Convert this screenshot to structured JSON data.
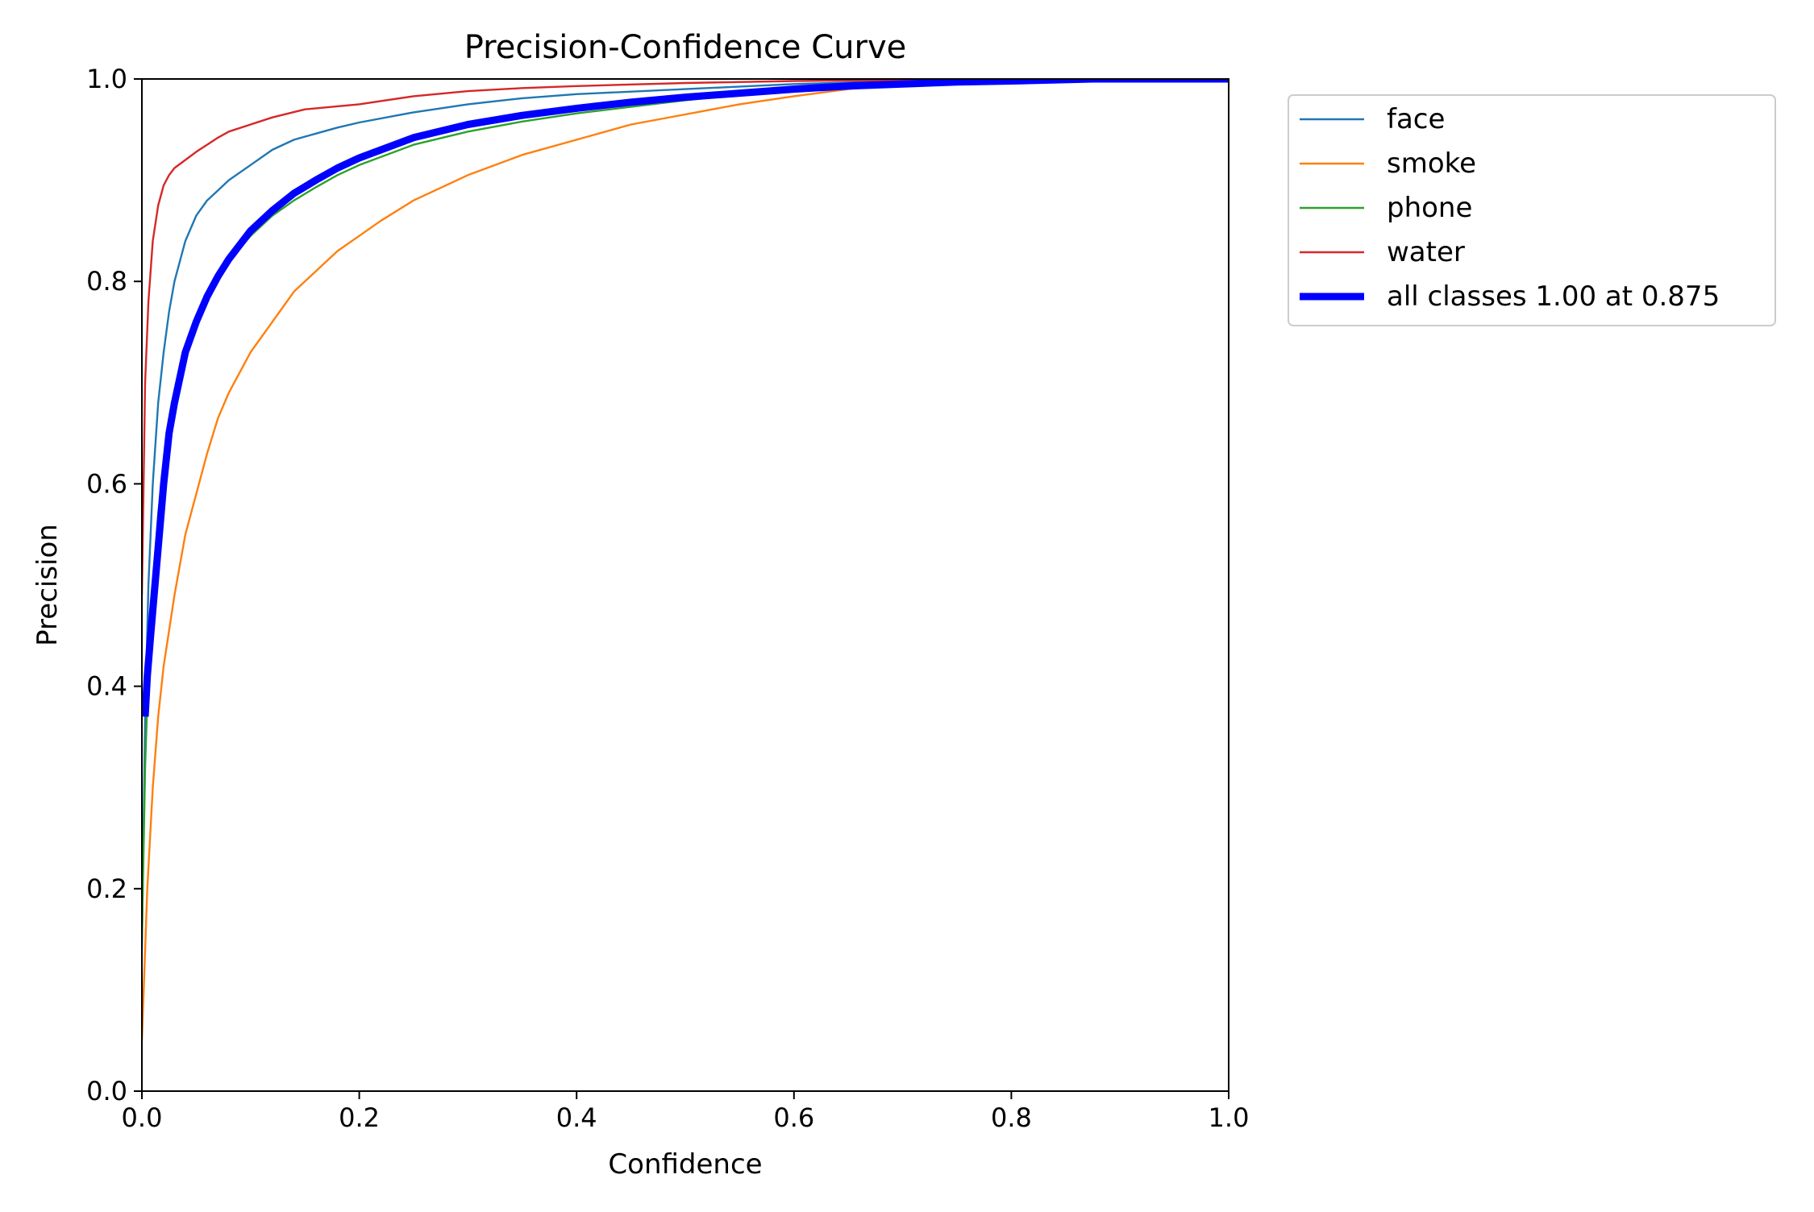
{
  "chart_data": {
    "type": "line",
    "title": "Precision-Confidence Curve",
    "xlabel": "Confidence",
    "ylabel": "Precision",
    "xlim": [
      0.0,
      1.0
    ],
    "ylim": [
      0.0,
      1.0
    ],
    "xticks": [
      0.0,
      0.2,
      0.4,
      0.6,
      0.8,
      1.0
    ],
    "yticks": [
      0.0,
      0.2,
      0.4,
      0.6,
      0.8,
      1.0
    ],
    "xtick_labels": [
      "0.0",
      "0.2",
      "0.4",
      "0.6",
      "0.8",
      "1.0"
    ],
    "ytick_labels": [
      "0.0",
      "0.2",
      "0.4",
      "0.6",
      "0.8",
      "1.0"
    ],
    "grid": false,
    "legend": "outside-upper-right",
    "series": [
      {
        "name": "face",
        "color": "#1f77b4",
        "x": [
          0.0,
          0.003,
          0.006,
          0.01,
          0.015,
          0.02,
          0.025,
          0.03,
          0.04,
          0.05,
          0.06,
          0.07,
          0.08,
          0.1,
          0.12,
          0.14,
          0.16,
          0.18,
          0.2,
          0.25,
          0.3,
          0.35,
          0.4,
          0.5,
          0.6,
          0.7,
          0.8,
          0.9,
          1.0
        ],
        "y": [
          0.14,
          0.37,
          0.5,
          0.6,
          0.68,
          0.73,
          0.77,
          0.8,
          0.84,
          0.865,
          0.88,
          0.89,
          0.9,
          0.915,
          0.93,
          0.94,
          0.946,
          0.952,
          0.957,
          0.967,
          0.975,
          0.981,
          0.985,
          0.99,
          0.995,
          0.998,
          0.999,
          1.0,
          1.0
        ]
      },
      {
        "name": "smoke",
        "color": "#ff7f0e",
        "x": [
          0.0,
          0.005,
          0.01,
          0.015,
          0.02,
          0.03,
          0.04,
          0.05,
          0.06,
          0.07,
          0.08,
          0.1,
          0.12,
          0.14,
          0.16,
          0.18,
          0.2,
          0.22,
          0.25,
          0.3,
          0.35,
          0.4,
          0.45,
          0.5,
          0.55,
          0.6,
          0.65,
          0.7,
          0.8,
          0.9,
          1.0
        ],
        "y": [
          0.05,
          0.2,
          0.3,
          0.37,
          0.42,
          0.49,
          0.55,
          0.59,
          0.63,
          0.665,
          0.69,
          0.73,
          0.76,
          0.79,
          0.81,
          0.83,
          0.845,
          0.86,
          0.88,
          0.905,
          0.925,
          0.94,
          0.955,
          0.965,
          0.975,
          0.983,
          0.99,
          0.995,
          0.998,
          1.0,
          1.0
        ]
      },
      {
        "name": "phone",
        "color": "#2ca02c",
        "x": [
          0.0,
          0.003,
          0.006,
          0.01,
          0.015,
          0.02,
          0.025,
          0.03,
          0.04,
          0.05,
          0.06,
          0.07,
          0.08,
          0.1,
          0.12,
          0.14,
          0.16,
          0.18,
          0.2,
          0.25,
          0.3,
          0.35,
          0.4,
          0.5,
          0.6,
          0.7,
          0.8,
          0.9,
          1.0
        ],
        "y": [
          0.15,
          0.32,
          0.42,
          0.5,
          0.57,
          0.62,
          0.66,
          0.69,
          0.73,
          0.76,
          0.785,
          0.805,
          0.82,
          0.845,
          0.865,
          0.88,
          0.893,
          0.905,
          0.915,
          0.935,
          0.948,
          0.958,
          0.966,
          0.979,
          0.99,
          0.996,
          0.999,
          1.0,
          1.0
        ]
      },
      {
        "name": "water",
        "color": "#d62728",
        "x": [
          0.0,
          0.003,
          0.006,
          0.01,
          0.015,
          0.02,
          0.025,
          0.03,
          0.04,
          0.05,
          0.06,
          0.07,
          0.08,
          0.1,
          0.12,
          0.15,
          0.18,
          0.2,
          0.25,
          0.3,
          0.35,
          0.4,
          0.5,
          0.6,
          0.7,
          0.8,
          0.9,
          1.0
        ],
        "y": [
          0.49,
          0.7,
          0.78,
          0.84,
          0.875,
          0.895,
          0.905,
          0.912,
          0.92,
          0.928,
          0.935,
          0.942,
          0.948,
          0.955,
          0.962,
          0.97,
          0.973,
          0.975,
          0.983,
          0.988,
          0.991,
          0.993,
          0.996,
          0.998,
          0.999,
          1.0,
          1.0,
          1.0
        ]
      },
      {
        "name": "all classes 1.00 at 0.875",
        "color": "#0000ff",
        "bold": true,
        "x": [
          0.003,
          0.005,
          0.008,
          0.012,
          0.016,
          0.02,
          0.025,
          0.03,
          0.04,
          0.05,
          0.06,
          0.07,
          0.08,
          0.1,
          0.12,
          0.14,
          0.16,
          0.18,
          0.2,
          0.25,
          0.3,
          0.35,
          0.4,
          0.45,
          0.5,
          0.55,
          0.6,
          0.65,
          0.7,
          0.75,
          0.8,
          0.875,
          0.9,
          1.0
        ],
        "y": [
          0.37,
          0.41,
          0.45,
          0.5,
          0.55,
          0.6,
          0.65,
          0.68,
          0.73,
          0.76,
          0.785,
          0.805,
          0.822,
          0.85,
          0.87,
          0.887,
          0.9,
          0.912,
          0.922,
          0.942,
          0.955,
          0.964,
          0.971,
          0.977,
          0.982,
          0.986,
          0.99,
          0.993,
          0.995,
          0.997,
          0.998,
          1.0,
          1.0,
          1.0
        ]
      }
    ]
  }
}
